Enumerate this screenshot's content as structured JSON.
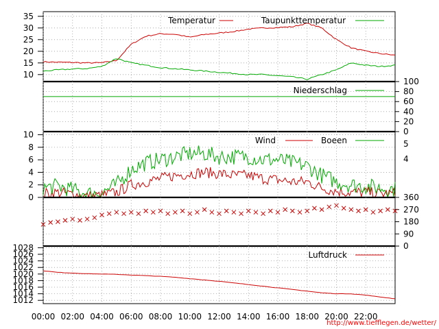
{
  "x_ticks": [
    "00:00",
    "02:00",
    "04:00",
    "06:00",
    "08:00",
    "10:00",
    "12:00",
    "14:00",
    "16:00",
    "18:00",
    "20:00",
    "22:00"
  ],
  "credit": "http://www.tiefflegen.de/wetter/",
  "colors": {
    "red": "#cc0000",
    "green": "#00aa00",
    "grid": "#999999",
    "frame": "#000000"
  },
  "chart_data": [
    {
      "type": "line",
      "panel": "temperature",
      "ylim": [
        7,
        37
      ],
      "yticks": [
        10,
        15,
        20,
        25,
        30,
        35
      ],
      "x": [
        0,
        1,
        2,
        3,
        4,
        5,
        6,
        7,
        8,
        9,
        10,
        11,
        12,
        13,
        14,
        15,
        16,
        17,
        18,
        19,
        20,
        21,
        22,
        23,
        24
      ],
      "series": [
        {
          "name": "Temperatur",
          "color": "#cc0000",
          "values": [
            15.5,
            15.3,
            15.2,
            15.0,
            15.1,
            16.0,
            23.0,
            26.5,
            27.5,
            27.3,
            26.0,
            27.2,
            27.8,
            28.5,
            29.5,
            30.0,
            30.2,
            30.5,
            32.0,
            30.0,
            25.0,
            21.5,
            20.0,
            19.0,
            18.3
          ]
        },
        {
          "name": "Taupunkttemperatur",
          "color": "#00aa00",
          "values": [
            11.5,
            12.0,
            12.4,
            12.6,
            13.5,
            17.0,
            15.0,
            14.0,
            13.0,
            12.5,
            12.0,
            11.5,
            11.0,
            10.5,
            10.0,
            10.0,
            9.5,
            9.0,
            8.0,
            10.0,
            12.0,
            15.0,
            14.0,
            13.5,
            14.0
          ]
        }
      ]
    },
    {
      "type": "line",
      "panel": "precipitation",
      "ylim": [
        0,
        100
      ],
      "yticks": [
        0,
        20,
        40,
        60,
        80,
        100
      ],
      "x": [
        0,
        24
      ],
      "series": [
        {
          "name": "Niederschlag",
          "color": "#00aa00",
          "values": [
            70,
            70
          ]
        }
      ]
    },
    {
      "type": "line",
      "panel": "wind",
      "ylim": [
        0,
        10.5
      ],
      "yticks": [
        0,
        2,
        4,
        6,
        8,
        10
      ],
      "right_ticks": [
        "4",
        "5"
      ],
      "x": [
        0,
        1,
        2,
        3,
        4,
        5,
        6,
        7,
        8,
        9,
        10,
        11,
        12,
        13,
        14,
        15,
        16,
        17,
        18,
        19,
        20,
        21,
        22,
        23,
        24
      ],
      "series": [
        {
          "name": "Wind",
          "color": "#cc0000",
          "values": [
            0.6,
            0.8,
            0.5,
            0.2,
            0.3,
            0.8,
            2.0,
            2.5,
            3.0,
            3.5,
            3.8,
            4.0,
            3.8,
            3.5,
            3.5,
            3.0,
            2.8,
            2.5,
            2.5,
            1.5,
            1.0,
            0.8,
            0.8,
            0.6,
            0.6
          ]
        },
        {
          "name": "Boeen",
          "color": "#00aa00",
          "values": [
            1.5,
            1.8,
            1.2,
            0.6,
            0.8,
            2.0,
            4.5,
            5.5,
            6.0,
            6.5,
            7.0,
            7.0,
            6.5,
            6.5,
            6.5,
            6.0,
            6.0,
            5.5,
            5.0,
            3.5,
            2.5,
            2.0,
            1.8,
            1.5,
            1.3
          ]
        }
      ]
    },
    {
      "type": "scatter",
      "panel": "wind_direction",
      "ylim": [
        0,
        360
      ],
      "yticks": [
        0,
        90,
        180,
        270,
        360
      ],
      "x": [
        0,
        0.5,
        1,
        1.5,
        2,
        2.5,
        3,
        3.5,
        4,
        4.5,
        5,
        5.5,
        6,
        6.5,
        7,
        7.5,
        8,
        8.5,
        9,
        9.5,
        10,
        10.5,
        11,
        11.5,
        12,
        12.5,
        13,
        13.5,
        14,
        14.5,
        15,
        15.5,
        16,
        16.5,
        17,
        17.5,
        18,
        18.5,
        19,
        19.5,
        20,
        20.5,
        21,
        21.5,
        22,
        22.5,
        23,
        23.5,
        24
      ],
      "y": [
        160,
        175,
        180,
        190,
        200,
        190,
        200,
        210,
        230,
        240,
        250,
        240,
        250,
        240,
        260,
        250,
        260,
        240,
        250,
        260,
        240,
        250,
        270,
        250,
        240,
        260,
        250,
        240,
        260,
        250,
        240,
        260,
        250,
        270,
        260,
        250,
        260,
        280,
        270,
        290,
        300,
        280,
        270,
        260,
        270,
        250,
        260,
        270,
        260
      ],
      "series": [
        {
          "name": "",
          "color": "#cc0000"
        }
      ]
    },
    {
      "type": "line",
      "panel": "pressure",
      "ylim": [
        1011,
        1028.5
      ],
      "yticks": [
        1012,
        1014,
        1016,
        1018,
        1020,
        1022,
        1024,
        1026,
        1028
      ],
      "x": [
        0,
        1,
        2,
        3,
        4,
        5,
        6,
        7,
        8,
        9,
        10,
        11,
        12,
        13,
        14,
        15,
        16,
        17,
        18,
        19,
        20,
        21,
        22,
        23,
        24
      ],
      "series": [
        {
          "name": "Luftdruck",
          "color": "#cc0000",
          "values": [
            1021.0,
            1020.5,
            1020.3,
            1020.1,
            1020.0,
            1019.9,
            1019.7,
            1019.5,
            1019.3,
            1019.0,
            1018.6,
            1018.2,
            1017.8,
            1017.3,
            1016.8,
            1016.3,
            1015.8,
            1015.3,
            1014.8,
            1014.3,
            1014.0,
            1014.0,
            1013.6,
            1013.0,
            1012.5
          ]
        }
      ]
    }
  ]
}
